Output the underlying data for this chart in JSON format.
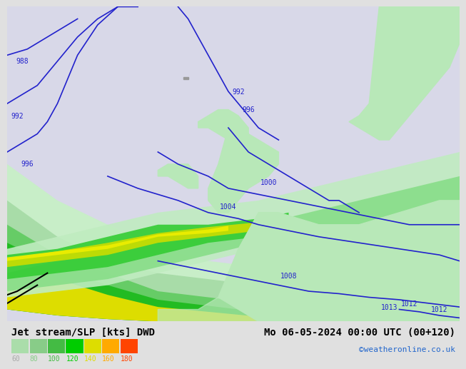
{
  "title": "Jet stream/SLP [kts] DWD",
  "date_label": "Mo 06-05-2024 00:00 UTC (00+120)",
  "credit": "©weatheronline.co.uk",
  "background_color": "#d8d8e8",
  "land_color": "#b8e8b8",
  "sea_color": "#d0d8e8",
  "contour_color": "#2222cc",
  "contour_linewidth": 1.2,
  "legend_values": [
    60,
    80,
    100,
    120,
    140,
    160,
    180
  ],
  "legend_colors": [
    "#aaddaa",
    "#88cc88",
    "#44bb44",
    "#00cc00",
    "#dddd00",
    "#ffaa00",
    "#ff4400"
  ],
  "jet_colors": [
    "#c8eec8",
    "#88dd88",
    "#44cc44",
    "#00bb00",
    "#dddd00"
  ],
  "title_fontsize": 10,
  "label_fontsize": 8,
  "isobar_labels": [
    "988",
    "992",
    "996",
    "992",
    "996",
    "1000",
    "1004",
    "1008",
    "1012",
    "1013",
    "1012"
  ],
  "xlim": [
    -25,
    20
  ],
  "ylim": [
    42,
    68
  ]
}
